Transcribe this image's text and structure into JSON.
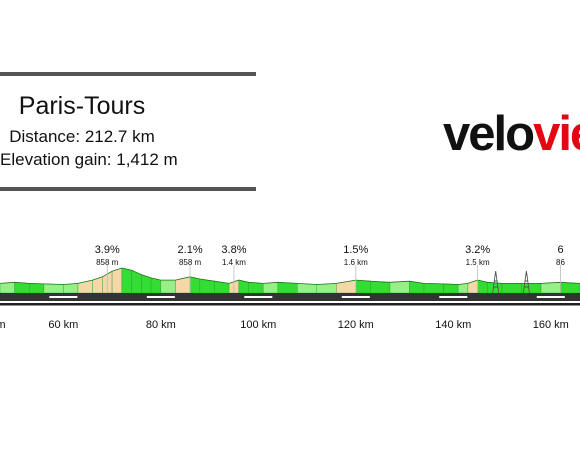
{
  "header": {
    "title": "Paris-Tours",
    "distance": "Distance: 212.7 km",
    "elevation_gain": "Elevation gain: 1,412 m"
  },
  "brand": {
    "word_dark": "velo",
    "word_red": "vie",
    "dark": "#111111",
    "red": "#e30613"
  },
  "chart_data": {
    "type": "area",
    "title": "",
    "xlabel": "",
    "ylabel": "",
    "x_unit": "km",
    "xlim": [
      47,
      166
    ],
    "x_ticks": [
      {
        "value": 60,
        "label": "60 km"
      },
      {
        "value": 80,
        "label": "80 km"
      },
      {
        "value": 100,
        "label": "100 km"
      },
      {
        "value": 120,
        "label": "120 km"
      },
      {
        "value": 140,
        "label": "140 km"
      },
      {
        "value": 160,
        "label": "160 km"
      }
    ],
    "extra_ticks": [
      {
        "value": 47,
        "label": "m"
      }
    ],
    "climbs": [
      {
        "km": 69,
        "gradient": "3.9%",
        "length": "858 m"
      },
      {
        "km": 86,
        "gradient": "2.1%",
        "length": "858 m"
      },
      {
        "km": 95,
        "gradient": "3.8%",
        "length": "1.4 km"
      },
      {
        "km": 120,
        "gradient": "1.5%",
        "length": "1.6 km"
      },
      {
        "km": 145,
        "gradient": "3.2%",
        "length": "1.5 km"
      },
      {
        "km": 162,
        "gradient": "6",
        "length": "86"
      }
    ],
    "elevation_profile_relative": [
      [
        47,
        0.3
      ],
      [
        50,
        0.35
      ],
      [
        53,
        0.3
      ],
      [
        56,
        0.28
      ],
      [
        60,
        0.25
      ],
      [
        63,
        0.3
      ],
      [
        66,
        0.45
      ],
      [
        68,
        0.6
      ],
      [
        70,
        0.85
      ],
      [
        72,
        1.0
      ],
      [
        74,
        0.9
      ],
      [
        76,
        0.7
      ],
      [
        78,
        0.55
      ],
      [
        80,
        0.45
      ],
      [
        83,
        0.45
      ],
      [
        86,
        0.6
      ],
      [
        88,
        0.5
      ],
      [
        91,
        0.4
      ],
      [
        94,
        0.3
      ],
      [
        96,
        0.45
      ],
      [
        98,
        0.35
      ],
      [
        101,
        0.3
      ],
      [
        104,
        0.35
      ],
      [
        108,
        0.3
      ],
      [
        112,
        0.25
      ],
      [
        116,
        0.3
      ],
      [
        120,
        0.45
      ],
      [
        123,
        0.4
      ],
      [
        127,
        0.35
      ],
      [
        131,
        0.4
      ],
      [
        134,
        0.3
      ],
      [
        138,
        0.28
      ],
      [
        141,
        0.25
      ],
      [
        143,
        0.3
      ],
      [
        145,
        0.45
      ],
      [
        147,
        0.35
      ],
      [
        150,
        0.3
      ],
      [
        154,
        0.3
      ],
      [
        158,
        0.3
      ],
      [
        162,
        0.35
      ],
      [
        166,
        0.3
      ]
    ],
    "colors": {
      "flat": "#33dd33",
      "easy": "#99ee88",
      "medium": "#f5d8a8",
      "grey": "#999999",
      "road": "#333333"
    },
    "markers": [
      {
        "km": 148.7,
        "type": "pylon"
      },
      {
        "km": 155,
        "type": "pylon"
      }
    ]
  }
}
